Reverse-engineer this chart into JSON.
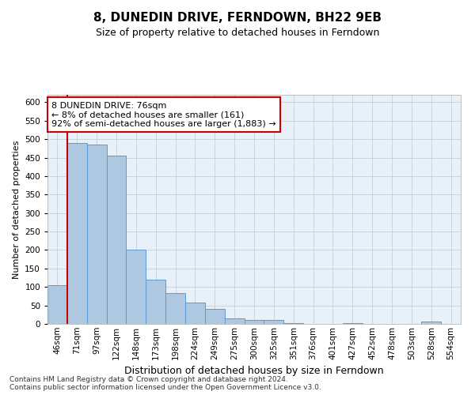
{
  "title": "8, DUNEDIN DRIVE, FERNDOWN, BH22 9EB",
  "subtitle": "Size of property relative to detached houses in Ferndown",
  "xlabel": "Distribution of detached houses by size in Ferndown",
  "ylabel": "Number of detached properties",
  "bar_color": "#adc8e0",
  "bar_edge_color": "#5b9bd5",
  "background_color": "#e8f0f8",
  "categories": [
    "46sqm",
    "71sqm",
    "97sqm",
    "122sqm",
    "148sqm",
    "173sqm",
    "198sqm",
    "224sqm",
    "249sqm",
    "275sqm",
    "300sqm",
    "325sqm",
    "351sqm",
    "376sqm",
    "401sqm",
    "427sqm",
    "452sqm",
    "478sqm",
    "503sqm",
    "528sqm",
    "554sqm"
  ],
  "values": [
    105,
    490,
    485,
    455,
    200,
    120,
    83,
    57,
    40,
    15,
    10,
    10,
    2,
    0,
    0,
    2,
    0,
    0,
    0,
    7,
    0
  ],
  "ylim": [
    0,
    620
  ],
  "yticks": [
    0,
    50,
    100,
    150,
    200,
    250,
    300,
    350,
    400,
    450,
    500,
    550,
    600
  ],
  "property_line_bar_index": 1,
  "annotation_text": "8 DUNEDIN DRIVE: 76sqm\n← 8% of detached houses are smaller (161)\n92% of semi-detached houses are larger (1,883) →",
  "annotation_box_color": "#ffffff",
  "annotation_box_edge_color": "#cc0000",
  "footer": "Contains HM Land Registry data © Crown copyright and database right 2024.\nContains public sector information licensed under the Open Government Licence v3.0.",
  "property_line_color": "#cc0000",
  "title_fontsize": 11,
  "subtitle_fontsize": 9,
  "ylabel_fontsize": 8,
  "xlabel_fontsize": 9,
  "tick_fontsize": 7.5,
  "footer_fontsize": 6.5
}
